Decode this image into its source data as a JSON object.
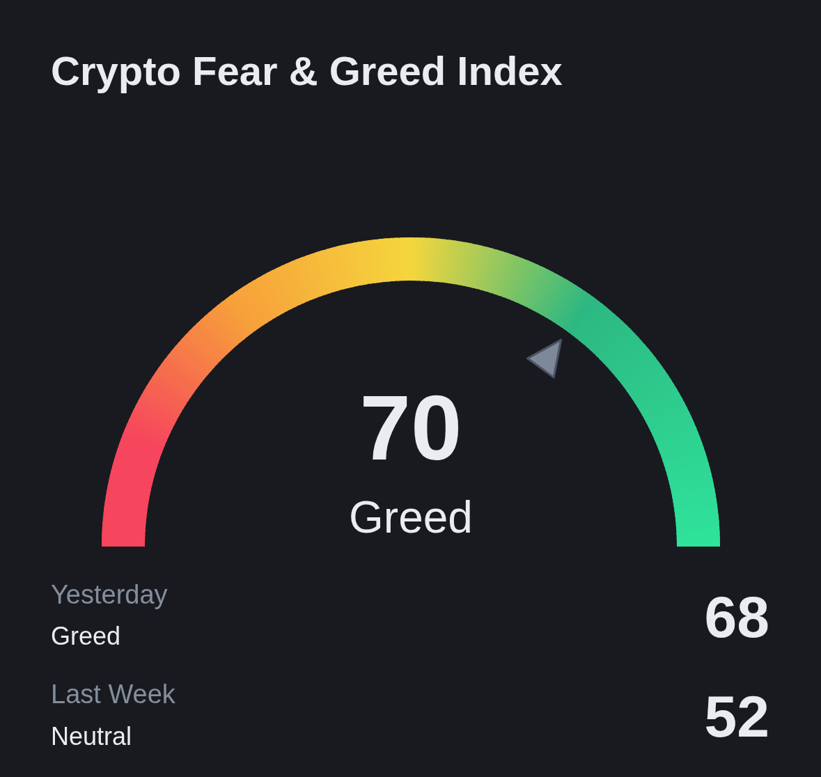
{
  "chart_data": {
    "type": "other",
    "title": "Crypto Fear & Greed Index",
    "categories": [
      null,
      "Yesterday",
      "Last Week"
    ],
    "values": [
      70,
      68,
      52
    ],
    "annotations": [
      "Greed",
      "Greed",
      "Neutral"
    ],
    "data_labels": true
  }
}
